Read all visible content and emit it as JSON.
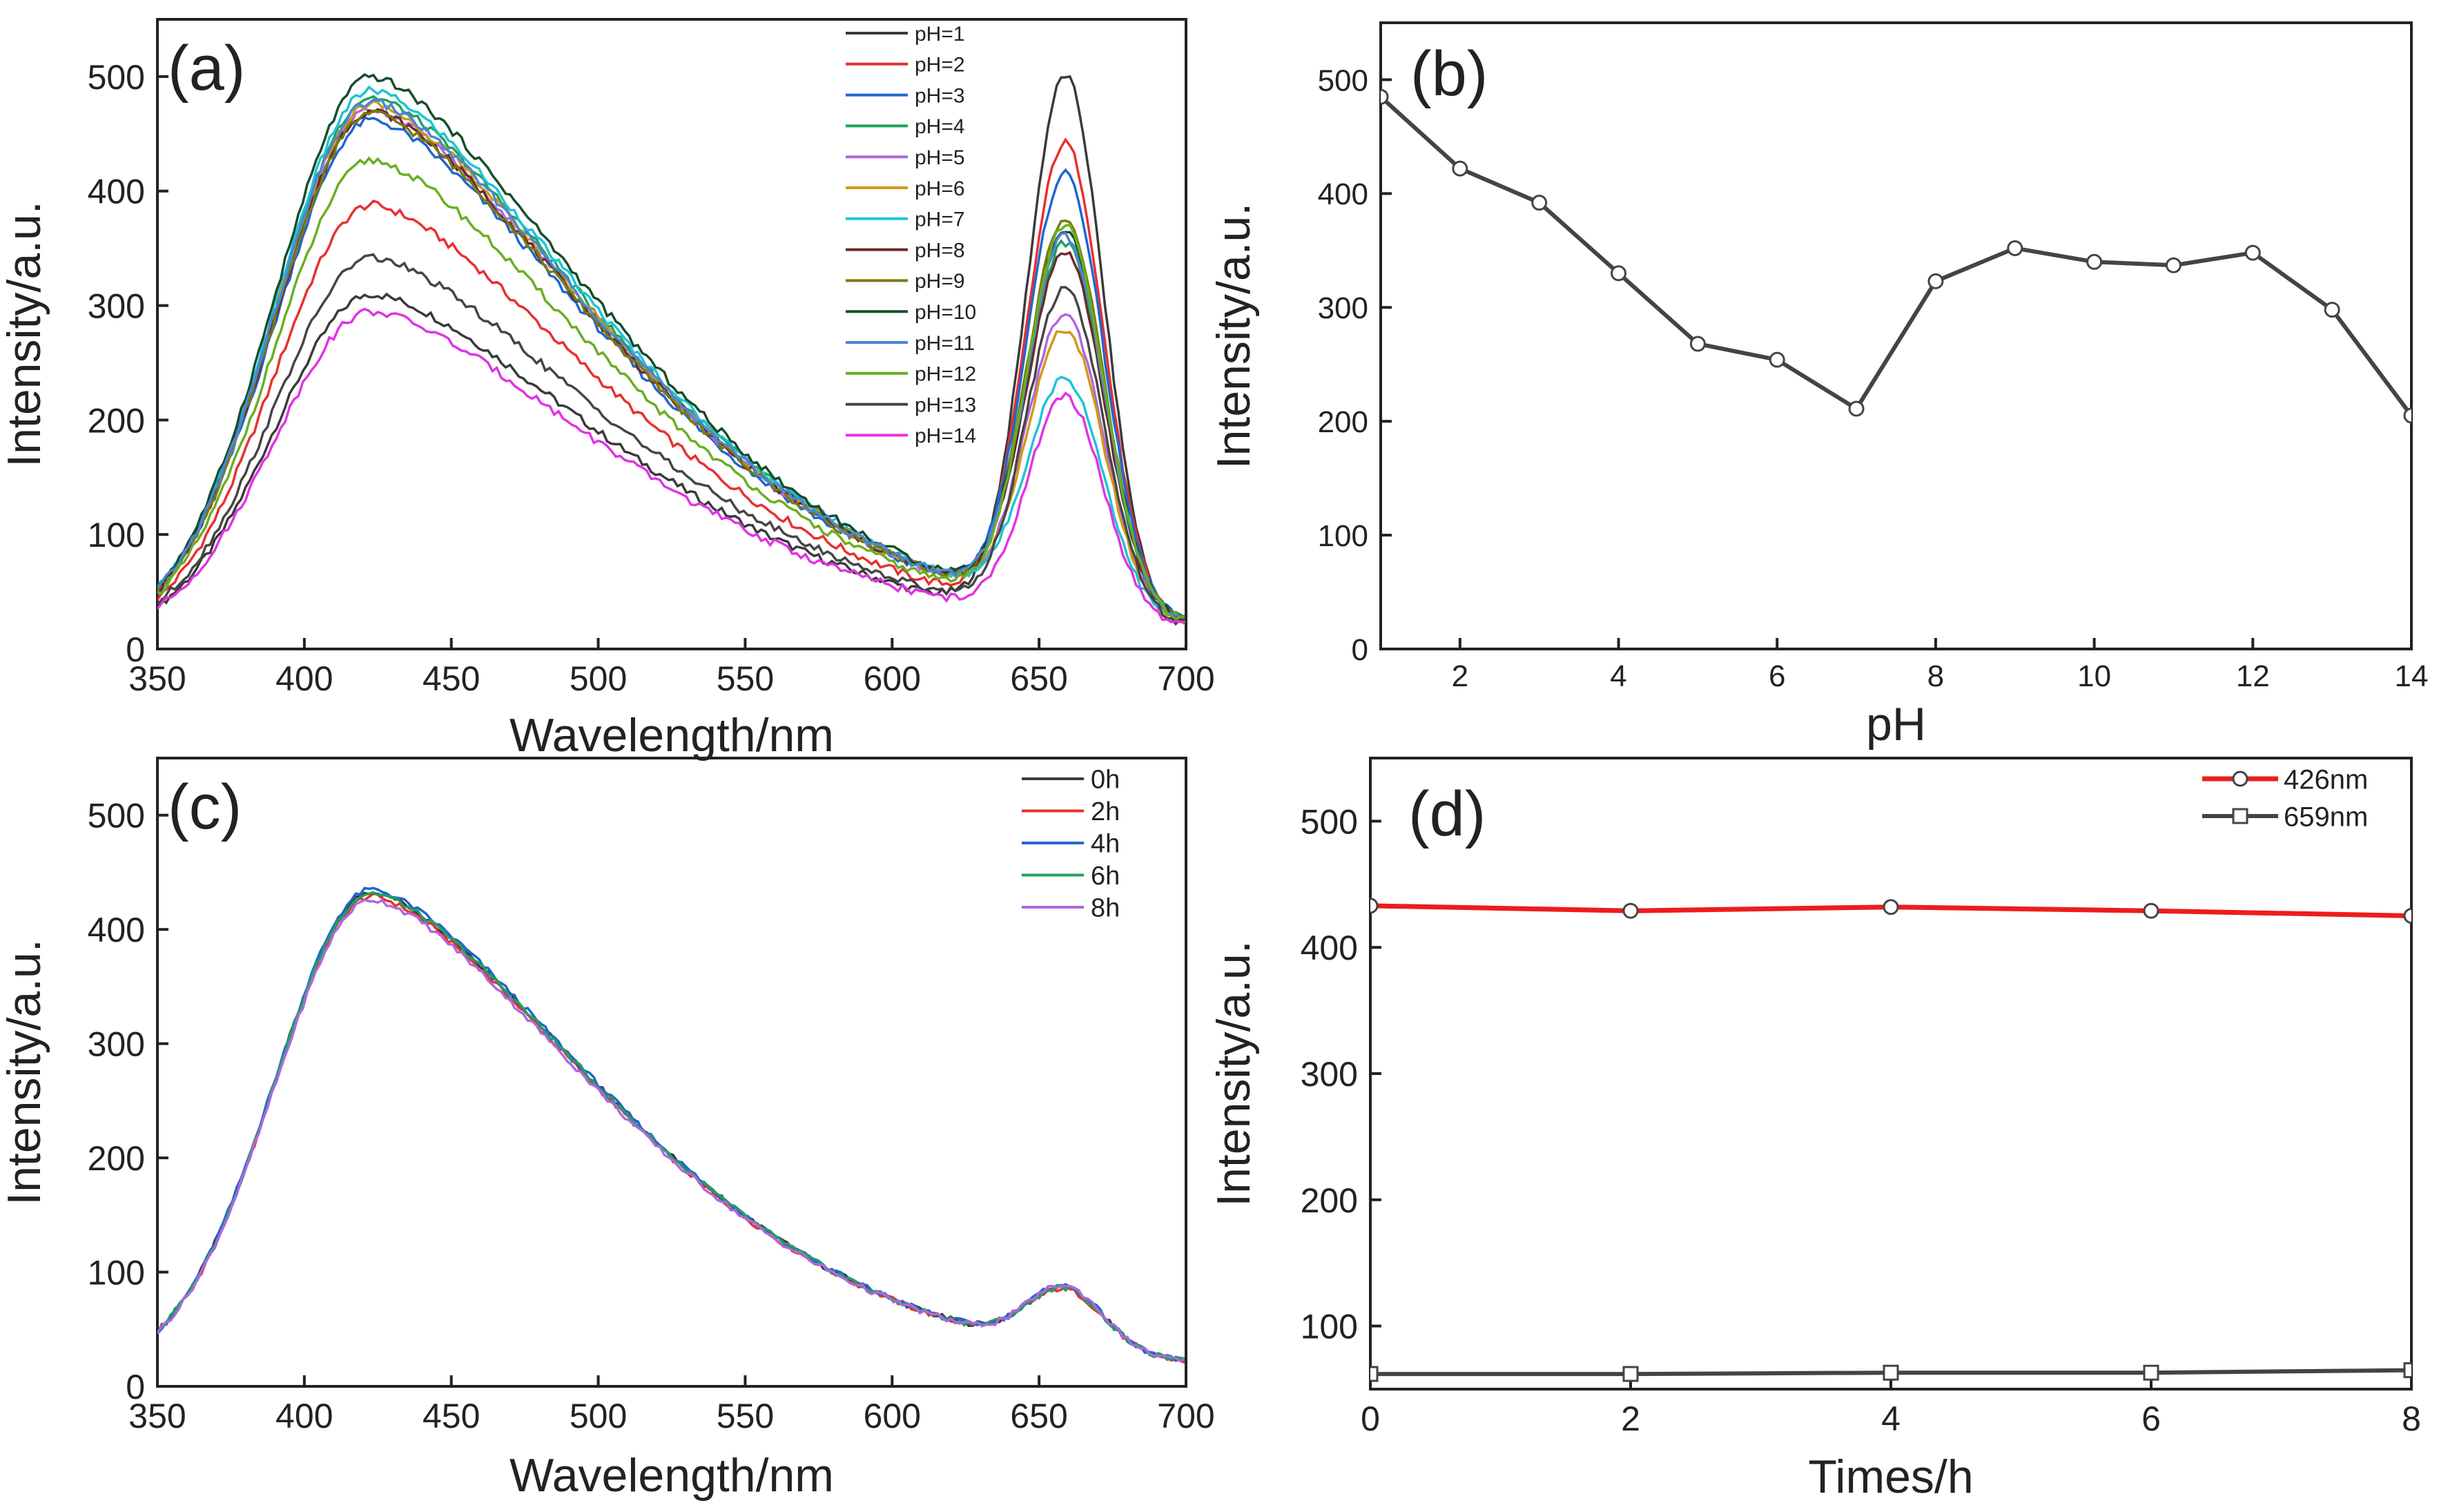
{
  "chart_data": [
    {
      "panel": "(a)",
      "type": "line",
      "xlabel": "Wavelength/nm",
      "ylabel": "Intensity/a.u.",
      "xlim": [
        350,
        700
      ],
      "ylim": [
        0,
        550
      ],
      "xticks": [
        350,
        400,
        450,
        500,
        550,
        600,
        650,
        700
      ],
      "yticks": [
        0,
        100,
        200,
        300,
        400,
        500
      ],
      "legend_position": "top-right",
      "series": [
        {
          "name": "pH=1",
          "color": "#3a3a3a",
          "peak1": 310,
          "peak2": 485
        },
        {
          "name": "pH=2",
          "color": "#e8302f",
          "peak1": 388,
          "peak2": 422
        },
        {
          "name": "pH=3",
          "color": "#1f66d1",
          "peak1": 462,
          "peak2": 392
        },
        {
          "name": "pH=4",
          "color": "#1fa25c",
          "peak1": 482,
          "peak2": 330
        },
        {
          "name": "pH=5",
          "color": "#b066e0",
          "peak1": 472,
          "peak2": 268
        },
        {
          "name": "pH=6",
          "color": "#cf9a16",
          "peak1": 476,
          "peak2": 254
        },
        {
          "name": "pH=7",
          "color": "#1ec4d6",
          "peak1": 488,
          "peak2": 211
        },
        {
          "name": "pH=8",
          "color": "#6b2a2a",
          "peak1": 470,
          "peak2": 323
        },
        {
          "name": "pH=9",
          "color": "#7a7a10",
          "peak1": 468,
          "peak2": 352
        },
        {
          "name": "pH=10",
          "color": "#164d2a",
          "peak1": 500,
          "peak2": 340
        },
        {
          "name": "pH=11",
          "color": "#4a86d8",
          "peak1": 478,
          "peak2": 337
        },
        {
          "name": "pH=12",
          "color": "#6aae22",
          "peak1": 427,
          "peak2": 348
        },
        {
          "name": "pH=13",
          "color": "#454545",
          "peak1": 342,
          "peak2": 298
        },
        {
          "name": "pH=14",
          "color": "#e233e2",
          "peak1": 295,
          "peak2": 205
        }
      ]
    },
    {
      "panel": "(b)",
      "type": "line",
      "xlabel": "pH",
      "ylabel": "Intensity/a.u.",
      "xlim": [
        1,
        14
      ],
      "ylim": [
        0,
        550
      ],
      "xticks": [
        2,
        4,
        6,
        8,
        10,
        12,
        14
      ],
      "yticks": [
        0,
        100,
        200,
        300,
        400,
        500
      ],
      "series": [
        {
          "color": "#444444",
          "marker": "circle",
          "x": [
            1,
            2,
            3,
            4,
            5,
            6,
            7,
            8,
            9,
            10,
            11,
            12,
            13,
            14
          ],
          "y": [
            485,
            422,
            392,
            330,
            268,
            254,
            211,
            323,
            352,
            340,
            337,
            348,
            298,
            205
          ]
        }
      ]
    },
    {
      "panel": "(c)",
      "type": "line",
      "xlabel": "Wavelength/nm",
      "ylabel": "Intensity/a.u.",
      "xlim": [
        350,
        700
      ],
      "ylim": [
        0,
        550
      ],
      "xticks": [
        350,
        400,
        450,
        500,
        550,
        600,
        650,
        700
      ],
      "yticks": [
        0,
        100,
        200,
        300,
        400,
        500
      ],
      "legend_position": "top-right",
      "series": [
        {
          "name": "0h",
          "color": "#3a3a3a",
          "peak1": 433,
          "peak2": 64
        },
        {
          "name": "2h",
          "color": "#e8302f",
          "peak1": 429,
          "peak2": 63
        },
        {
          "name": "4h",
          "color": "#1f66d1",
          "peak1": 435,
          "peak2": 65
        },
        {
          "name": "6h",
          "color": "#1fa25c",
          "peak1": 432,
          "peak2": 64
        },
        {
          "name": "8h",
          "color": "#b066e0",
          "peak1": 426,
          "peak2": 66
        }
      ]
    },
    {
      "panel": "(d)",
      "type": "line",
      "xlabel": "Times/h",
      "ylabel": "Intensity/a.u.",
      "xlim": [
        0,
        8
      ],
      "ylim": [
        50,
        550
      ],
      "xticks": [
        0,
        2,
        4,
        6,
        8
      ],
      "yticks": [
        100,
        200,
        300,
        400,
        500
      ],
      "legend_position": "top-right",
      "series": [
        {
          "name": "426nm",
          "color": "#ee1c1c",
          "marker": "circle",
          "x": [
            0,
            2,
            4,
            6,
            8
          ],
          "y": [
            433,
            429,
            432,
            429,
            425
          ]
        },
        {
          "name": "659nm",
          "color": "#444444",
          "marker": "square",
          "x": [
            0,
            2,
            4,
            6,
            8
          ],
          "y": [
            62,
            62,
            63,
            63,
            65
          ]
        }
      ]
    }
  ]
}
